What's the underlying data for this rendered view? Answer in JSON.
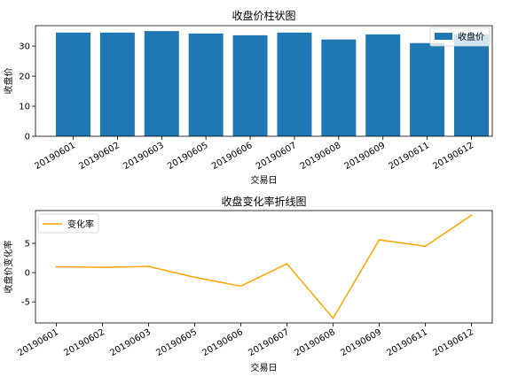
{
  "chart_data": [
    {
      "type": "bar",
      "title": "收盘价柱状图",
      "xlabel": "交易日",
      "ylabel": "收盘价",
      "categories": [
        "20190601",
        "20190602",
        "20190603",
        "20190605",
        "20190606",
        "20190607",
        "20190608",
        "20190609",
        "20190611",
        "20190612"
      ],
      "series": [
        {
          "name": "收盘价",
          "values": [
            34.5,
            34.5,
            35.0,
            34.2,
            33.6,
            34.5,
            32.2,
            33.9,
            31.0,
            34.0
          ],
          "color": "#1f77b4"
        }
      ],
      "ylim": [
        0,
        36.8
      ],
      "yticks": [
        0,
        10,
        20,
        30
      ],
      "legend": "top-right",
      "grid": false
    },
    {
      "type": "line",
      "title": "收盘变化率折线图",
      "xlabel": "交易日",
      "ylabel": "收盘价变化率",
      "categories": [
        "20190601",
        "20190602",
        "20190603",
        "20190605",
        "20190606",
        "20190607",
        "20190608",
        "20190609",
        "20190611",
        "20190612"
      ],
      "series": [
        {
          "name": "变化率",
          "values": [
            1.0,
            0.9,
            1.05,
            -0.8,
            -2.3,
            1.5,
            -7.8,
            5.6,
            4.5,
            9.8
          ],
          "color": "#ffa500"
        }
      ],
      "ylim": [
        -8.6,
        10.6
      ],
      "yticks": [
        -5,
        0,
        5
      ],
      "legend": "top-left",
      "grid": false
    }
  ]
}
